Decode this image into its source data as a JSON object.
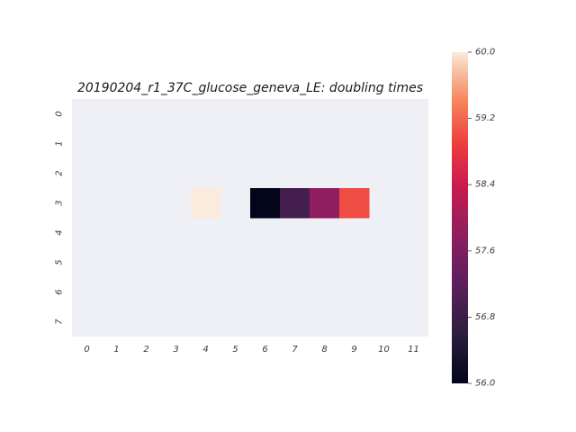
{
  "chart_data": {
    "type": "heatmap",
    "title": "20190204_r1_37C_glucose_geneva_LE: doubling times",
    "xlabel": "",
    "ylabel": "",
    "x_ticks": [
      "0",
      "1",
      "2",
      "3",
      "4",
      "5",
      "6",
      "7",
      "8",
      "9",
      "10",
      "11"
    ],
    "y_ticks": [
      "0",
      "1",
      "2",
      "3",
      "4",
      "5",
      "6",
      "7"
    ],
    "background_color": "#eff0f5",
    "cells": [
      {
        "row": 3,
        "col": 4,
        "value": 60.0
      },
      {
        "row": 3,
        "col": 6,
        "value": 56.0
      },
      {
        "row": 3,
        "col": 7,
        "value": 56.9
      },
      {
        "row": 3,
        "col": 8,
        "value": 57.8
      },
      {
        "row": 3,
        "col": 9,
        "value": 59.0
      }
    ],
    "colorbar": {
      "min": 56.0,
      "max": 60.0,
      "ticks": [
        "56.0",
        "56.8",
        "57.6",
        "58.4",
        "59.2",
        "60.0"
      ],
      "colormap": "rocket"
    }
  }
}
